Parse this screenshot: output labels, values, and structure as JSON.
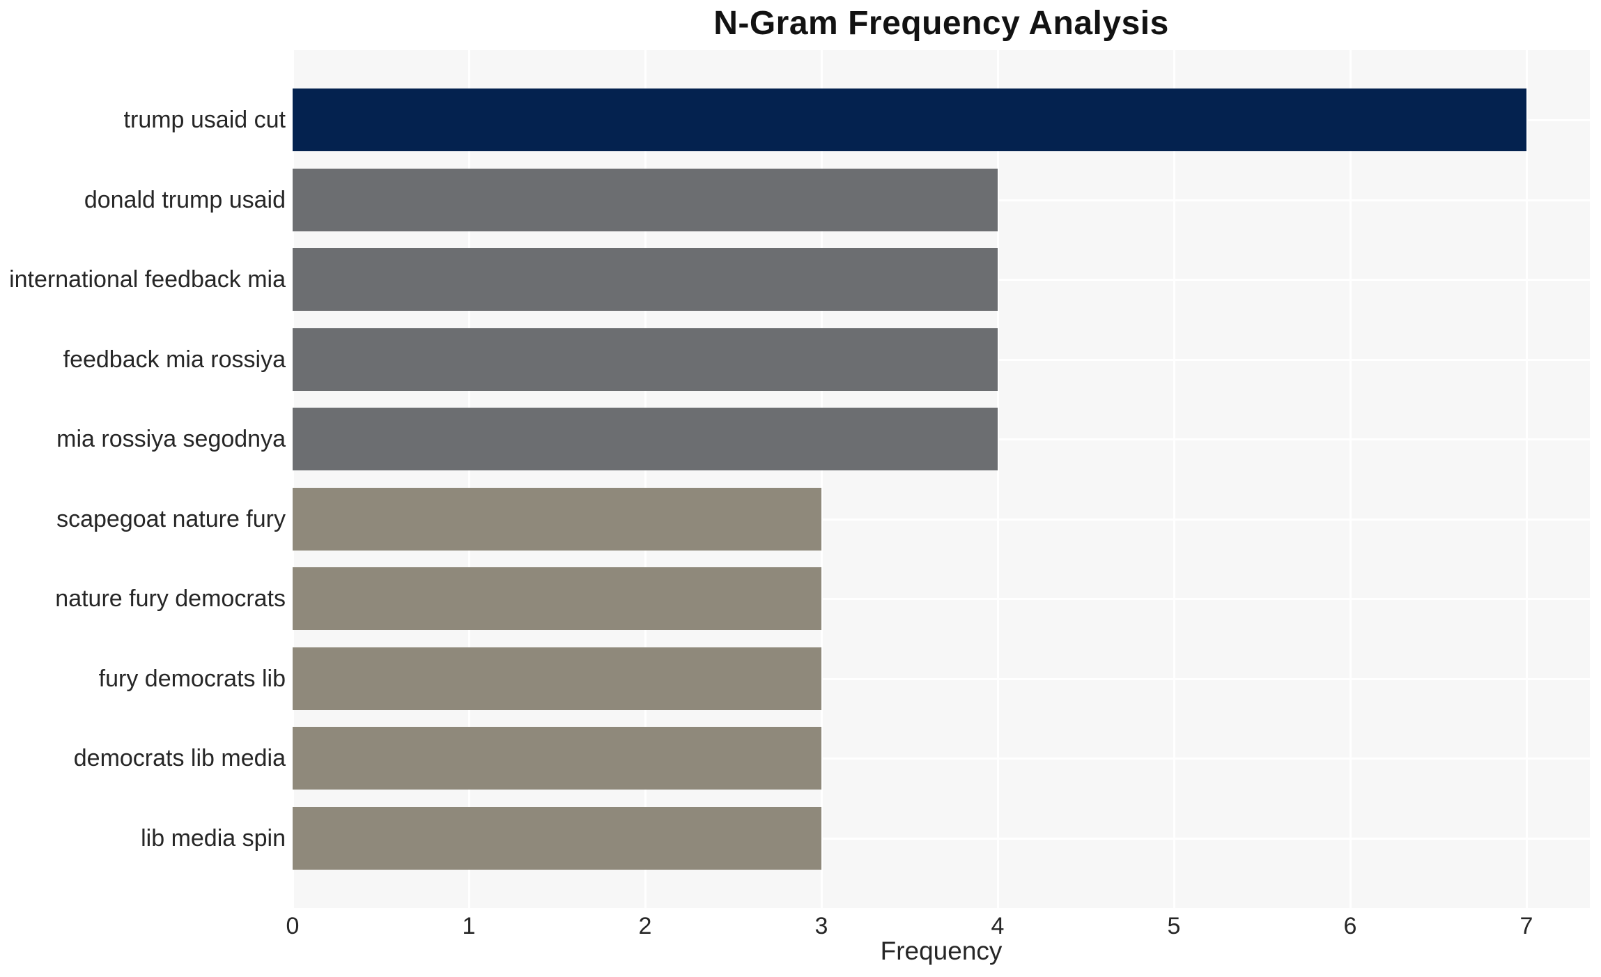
{
  "title": "N-Gram Frequency Analysis",
  "chart_data": {
    "type": "bar",
    "orientation": "horizontal",
    "title": "N-Gram Frequency Analysis",
    "xlabel": "Frequency",
    "ylabel": "",
    "categories": [
      "trump usaid cut",
      "donald trump usaid",
      "international feedback mia",
      "feedback mia rossiya",
      "mia rossiya segodnya",
      "scapegoat nature fury",
      "nature fury democrats",
      "fury democrats lib",
      "democrats lib media",
      "lib media spin"
    ],
    "values": [
      7,
      4,
      4,
      4,
      4,
      3,
      3,
      3,
      3,
      3
    ],
    "bar_colors": [
      "#04224F",
      "#6C6E71",
      "#6C6E71",
      "#6C6E71",
      "#6C6E71",
      "#8F897B",
      "#8F897B",
      "#8F897B",
      "#8F897B",
      "#8F897B"
    ],
    "xticks": [
      0,
      1,
      2,
      3,
      4,
      5,
      6,
      7
    ],
    "xlim": [
      0,
      7.36
    ],
    "grid": true,
    "legend": "none",
    "colors": {
      "panel_background": "#F7F7F7",
      "gridline": "#FFFFFF",
      "highlight_bar": "#04224F",
      "mid_bar": "#6C6E71",
      "low_bar": "#8F897B",
      "text": "#262626",
      "title_text": "#121212"
    }
  }
}
